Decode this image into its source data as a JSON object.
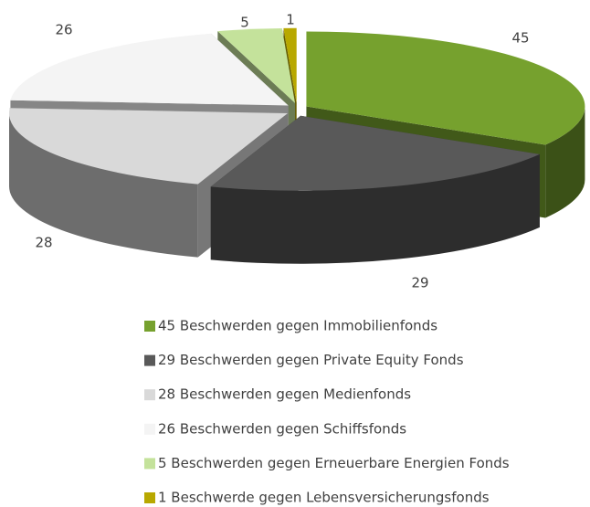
{
  "chart_data": {
    "type": "pie3d",
    "categories": [
      "45 Beschwerden gegen Immobilienfonds",
      "29 Beschwerden gegen Private Equity Fonds",
      "28 Beschwerden gegen Medienfonds",
      "26 Beschwerden gegen Schiffsfonds",
      "5 Beschwerden gegen Erneuerbare Energien Fonds",
      "1 Beschwerde gegen Lebensversicherungsfonds"
    ],
    "values": [
      45,
      29,
      28,
      26,
      5,
      1
    ],
    "colors": [
      "#76a12e",
      "#595959",
      "#d9d9d9",
      "#f4f4f4",
      "#c4e29b",
      "#b8a800"
    ],
    "legend": "bottom"
  }
}
